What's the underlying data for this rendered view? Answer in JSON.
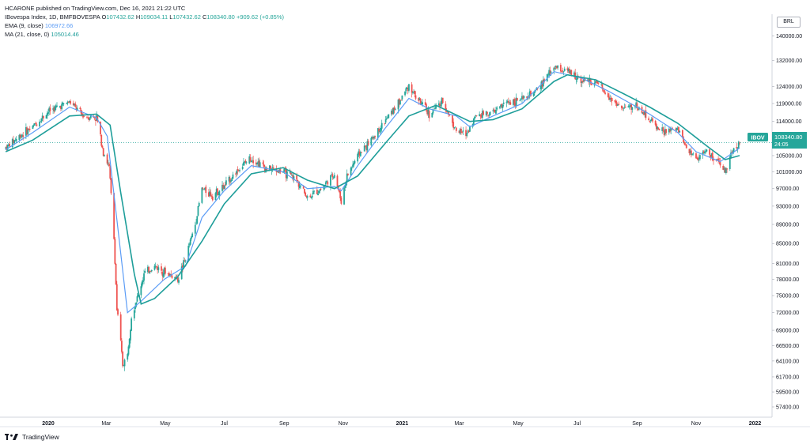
{
  "attribution": "HCARONE published on TradingView.com, Dec 16, 2021 21:22 UTC",
  "legend": {
    "symbol_name": "IBovespa Index, 1D, BMFBOVESPA",
    "ohlc": {
      "open_label": "O",
      "open": "107432.62",
      "high_label": "H",
      "high": "109034.11",
      "low_label": "L",
      "low": "107432.62",
      "close_label": "C",
      "close": "108340.80",
      "change": "+909.62 (+0.85%)"
    },
    "ema_label": "EMA (9, close)",
    "ema_value": "106972.66",
    "ma_label": "MA (21, close, 0)",
    "ma_value": "105014.46"
  },
  "currency": "BRL",
  "price_tag": {
    "ticker": "IBOV",
    "price": "108340.80",
    "countdown": "24:05"
  },
  "brand": "TradingView",
  "colors": {
    "up": "#26a69a",
    "down": "#ef5350",
    "ema": "#5b9cf6",
    "ma": "#1e9e9a",
    "text": "#131722"
  },
  "chart_data": {
    "type": "candlestick",
    "x_type": "date",
    "grid": false,
    "y_scale": "log",
    "ylim": [
      56000,
      147500
    ],
    "xlim": [
      "2019-11-17",
      "2022-01-12"
    ],
    "y_ticks": [
      57400,
      59500,
      61700,
      64100,
      66500,
      69000,
      72000,
      75000,
      78000,
      81000,
      85000,
      89000,
      93000,
      97000,
      101000,
      105000,
      114000,
      119000,
      124000,
      132000,
      140000
    ],
    "x_ticks": [
      {
        "label": "2020",
        "date": "2020-01-01"
      },
      {
        "label": "Mar",
        "date": "2020-03-01"
      },
      {
        "label": "May",
        "date": "2020-05-01"
      },
      {
        "label": "Jul",
        "date": "2020-07-01"
      },
      {
        "label": "Sep",
        "date": "2020-09-01"
      },
      {
        "label": "Nov",
        "date": "2020-11-01"
      },
      {
        "label": "2021",
        "date": "2021-01-01"
      },
      {
        "label": "Mar",
        "date": "2021-03-01"
      },
      {
        "label": "May",
        "date": "2021-05-01"
      },
      {
        "label": "Jul",
        "date": "2021-07-01"
      },
      {
        "label": "Sep",
        "date": "2021-09-01"
      },
      {
        "label": "Nov",
        "date": "2021-11-01"
      },
      {
        "label": "2022",
        "date": "2022-01-01"
      }
    ],
    "close_path": [
      [
        "2019-11-18",
        107000
      ],
      [
        "2019-12-02",
        110000
      ],
      [
        "2019-12-16",
        112500
      ],
      [
        "2020-01-02",
        117000
      ],
      [
        "2020-01-23",
        119500
      ],
      [
        "2020-02-06",
        115500
      ],
      [
        "2020-02-20",
        115000
      ],
      [
        "2020-02-27",
        106000
      ],
      [
        "2020-03-04",
        102000
      ],
      [
        "2020-03-09",
        86000
      ],
      [
        "2020-03-12",
        72500
      ],
      [
        "2020-03-16",
        67000
      ],
      [
        "2020-03-18",
        63500
      ],
      [
        "2020-03-23",
        65000
      ],
      [
        "2020-03-27",
        71500
      ],
      [
        "2020-04-03",
        75000
      ],
      [
        "2020-04-09",
        79000
      ],
      [
        "2020-04-20",
        80500
      ],
      [
        "2020-04-30",
        79500
      ],
      [
        "2020-05-14",
        78000
      ],
      [
        "2020-05-22",
        82000
      ],
      [
        "2020-06-01",
        89000
      ],
      [
        "2020-06-08",
        97000
      ],
      [
        "2020-06-19",
        95500
      ],
      [
        "2020-07-01",
        97500
      ],
      [
        "2020-07-15",
        101500
      ],
      [
        "2020-07-29",
        104500
      ],
      [
        "2020-08-12",
        102000
      ],
      [
        "2020-08-31",
        101000
      ],
      [
        "2020-09-14",
        99000
      ],
      [
        "2020-09-25",
        95000
      ],
      [
        "2020-10-09",
        97000
      ],
      [
        "2020-10-23",
        100500
      ],
      [
        "2020-10-30",
        94000
      ],
      [
        "2020-11-05",
        100000
      ],
      [
        "2020-11-16",
        105000
      ],
      [
        "2020-11-30",
        109000
      ],
      [
        "2020-12-14",
        114000
      ],
      [
        "2020-12-28",
        119000
      ],
      [
        "2021-01-08",
        124500
      ],
      [
        "2021-01-15",
        121000
      ],
      [
        "2021-01-29",
        116000
      ],
      [
        "2021-02-12",
        119500
      ],
      [
        "2021-02-26",
        111500
      ],
      [
        "2021-03-08",
        110500
      ],
      [
        "2021-03-19",
        116000
      ],
      [
        "2021-04-05",
        116500
      ],
      [
        "2021-04-20",
        119500
      ],
      [
        "2021-05-05",
        120000
      ],
      [
        "2021-05-20",
        122500
      ],
      [
        "2021-06-07",
        130000
      ],
      [
        "2021-06-21",
        128500
      ],
      [
        "2021-07-06",
        126000
      ],
      [
        "2021-07-20",
        125000
      ],
      [
        "2021-08-03",
        121000
      ],
      [
        "2021-08-17",
        117500
      ],
      [
        "2021-08-31",
        118500
      ],
      [
        "2021-09-14",
        114500
      ],
      [
        "2021-09-28",
        111000
      ],
      [
        "2021-10-13",
        112000
      ],
      [
        "2021-10-22",
        107000
      ],
      [
        "2021-11-01",
        104500
      ],
      [
        "2021-11-12",
        106000
      ],
      [
        "2021-11-26",
        102500
      ],
      [
        "2021-12-01",
        101000
      ],
      [
        "2021-12-06",
        105000
      ],
      [
        "2021-12-16",
        108340.8
      ]
    ],
    "ema_path": [
      [
        "2019-11-18",
        106500
      ],
      [
        "2019-12-16",
        111000
      ],
      [
        "2020-01-23",
        118000
      ],
      [
        "2020-02-20",
        115000
      ],
      [
        "2020-03-02",
        110000
      ],
      [
        "2020-03-12",
        90000
      ],
      [
        "2020-03-23",
        72000
      ],
      [
        "2020-04-06",
        74000
      ],
      [
        "2020-04-30",
        78000
      ],
      [
        "2020-05-22",
        80500
      ],
      [
        "2020-06-08",
        90500
      ],
      [
        "2020-07-01",
        96500
      ],
      [
        "2020-07-29",
        102500
      ],
      [
        "2020-08-31",
        101000
      ],
      [
        "2020-09-25",
        97000
      ],
      [
        "2020-10-23",
        97500
      ],
      [
        "2020-10-30",
        96500
      ],
      [
        "2020-11-16",
        102500
      ],
      [
        "2020-12-14",
        112000
      ],
      [
        "2021-01-08",
        120500
      ],
      [
        "2021-01-29",
        117500
      ],
      [
        "2021-02-26",
        115500
      ],
      [
        "2021-03-12",
        112500
      ],
      [
        "2021-04-05",
        115500
      ],
      [
        "2021-05-05",
        119000
      ],
      [
        "2021-06-07",
        128500
      ],
      [
        "2021-07-06",
        126500
      ],
      [
        "2021-08-03",
        122500
      ],
      [
        "2021-09-14",
        116000
      ],
      [
        "2021-10-13",
        111000
      ],
      [
        "2021-11-01",
        106000
      ],
      [
        "2021-11-26",
        103500
      ],
      [
        "2021-12-16",
        106972.66
      ]
    ],
    "ma_path": [
      [
        "2019-11-18",
        106000
      ],
      [
        "2019-12-16",
        109000
      ],
      [
        "2020-01-23",
        115500
      ],
      [
        "2020-02-20",
        116000
      ],
      [
        "2020-03-05",
        113000
      ],
      [
        "2020-03-16",
        96000
      ],
      [
        "2020-03-30",
        79000
      ],
      [
        "2020-04-06",
        73500
      ],
      [
        "2020-04-20",
        74500
      ],
      [
        "2020-05-14",
        78500
      ],
      [
        "2020-06-08",
        85500
      ],
      [
        "2020-07-01",
        93500
      ],
      [
        "2020-07-29",
        100500
      ],
      [
        "2020-08-31",
        102000
      ],
      [
        "2020-09-25",
        99000
      ],
      [
        "2020-10-23",
        97000
      ],
      [
        "2020-11-16",
        100000
      ],
      [
        "2020-12-14",
        108000
      ],
      [
        "2021-01-08",
        115500
      ],
      [
        "2021-02-05",
        118500
      ],
      [
        "2021-03-12",
        114000
      ],
      [
        "2021-04-05",
        114500
      ],
      [
        "2021-05-05",
        117500
      ],
      [
        "2021-06-07",
        125500
      ],
      [
        "2021-06-21",
        127500
      ],
      [
        "2021-07-20",
        126000
      ],
      [
        "2021-08-17",
        122000
      ],
      [
        "2021-09-14",
        118000
      ],
      [
        "2021-10-13",
        113500
      ],
      [
        "2021-11-12",
        107500
      ],
      [
        "2021-12-01",
        104000
      ],
      [
        "2021-12-16",
        105014.46
      ]
    ]
  }
}
